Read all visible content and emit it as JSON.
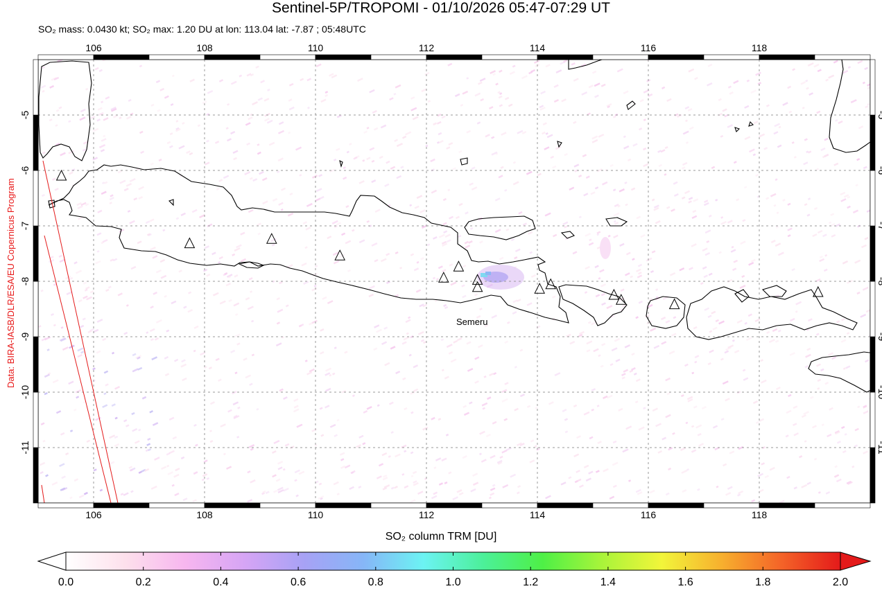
{
  "header": {
    "title": "Sentinel-5P/TROPOMI - 01/10/2026 05:47-07:29 UT",
    "subtitle": "SO₂ mass: 0.0430 kt; SO₂ max: 1.20 DU at lon: 113.04 lat: -7.87 ; 05:48UTC"
  },
  "credit": "Data: BIRA-IASB/DLR/ESA/EU Copernicus Program",
  "map": {
    "lon_range": [
      105,
      120
    ],
    "lat_range": [
      -12,
      -4
    ],
    "lon_ticks": [
      "106",
      "108",
      "110",
      "112",
      "114",
      "116",
      "118"
    ],
    "lat_ticks": [
      "-5",
      "-6",
      "-7",
      "-8",
      "-9",
      "-10",
      "-11"
    ],
    "grid": "dashed",
    "volcano_label": "Semeru",
    "volcanoes": [
      {
        "lon": 105.42,
        "lat": -6.1
      },
      {
        "lon": 107.73,
        "lat": -7.32
      },
      {
        "lon": 109.21,
        "lat": -7.24
      },
      {
        "lon": 110.44,
        "lat": -7.54
      },
      {
        "lon": 112.31,
        "lat": -7.94
      },
      {
        "lon": 112.58,
        "lat": -7.74
      },
      {
        "lon": 112.92,
        "lat": -7.98
      },
      {
        "lon": 112.92,
        "lat": -8.11
      },
      {
        "lon": 114.04,
        "lat": -8.14
      },
      {
        "lon": 114.24,
        "lat": -8.06
      },
      {
        "lon": 115.38,
        "lat": -8.25
      },
      {
        "lon": 115.51,
        "lat": -8.34
      },
      {
        "lon": 116.47,
        "lat": -8.42
      },
      {
        "lon": 119.06,
        "lat": -8.2
      }
    ]
  },
  "colorbar": {
    "title": "SO₂ column TRM [DU]",
    "min": 0.0,
    "max": 2.0,
    "ticks": [
      "0.0",
      "0.2",
      "0.4",
      "0.6",
      "0.8",
      "1.0",
      "1.2",
      "1.4",
      "1.6",
      "1.8",
      "2.0"
    ],
    "colors": [
      "#ffffff",
      "#fde0ec",
      "#f7b6ef",
      "#d6a5f5",
      "#a7a2f5",
      "#86b6f7",
      "#6cf3f3",
      "#4cf09a",
      "#4ef046",
      "#a9f43a",
      "#f2f53a",
      "#f7b02e",
      "#f46428",
      "#e41a1a"
    ]
  }
}
